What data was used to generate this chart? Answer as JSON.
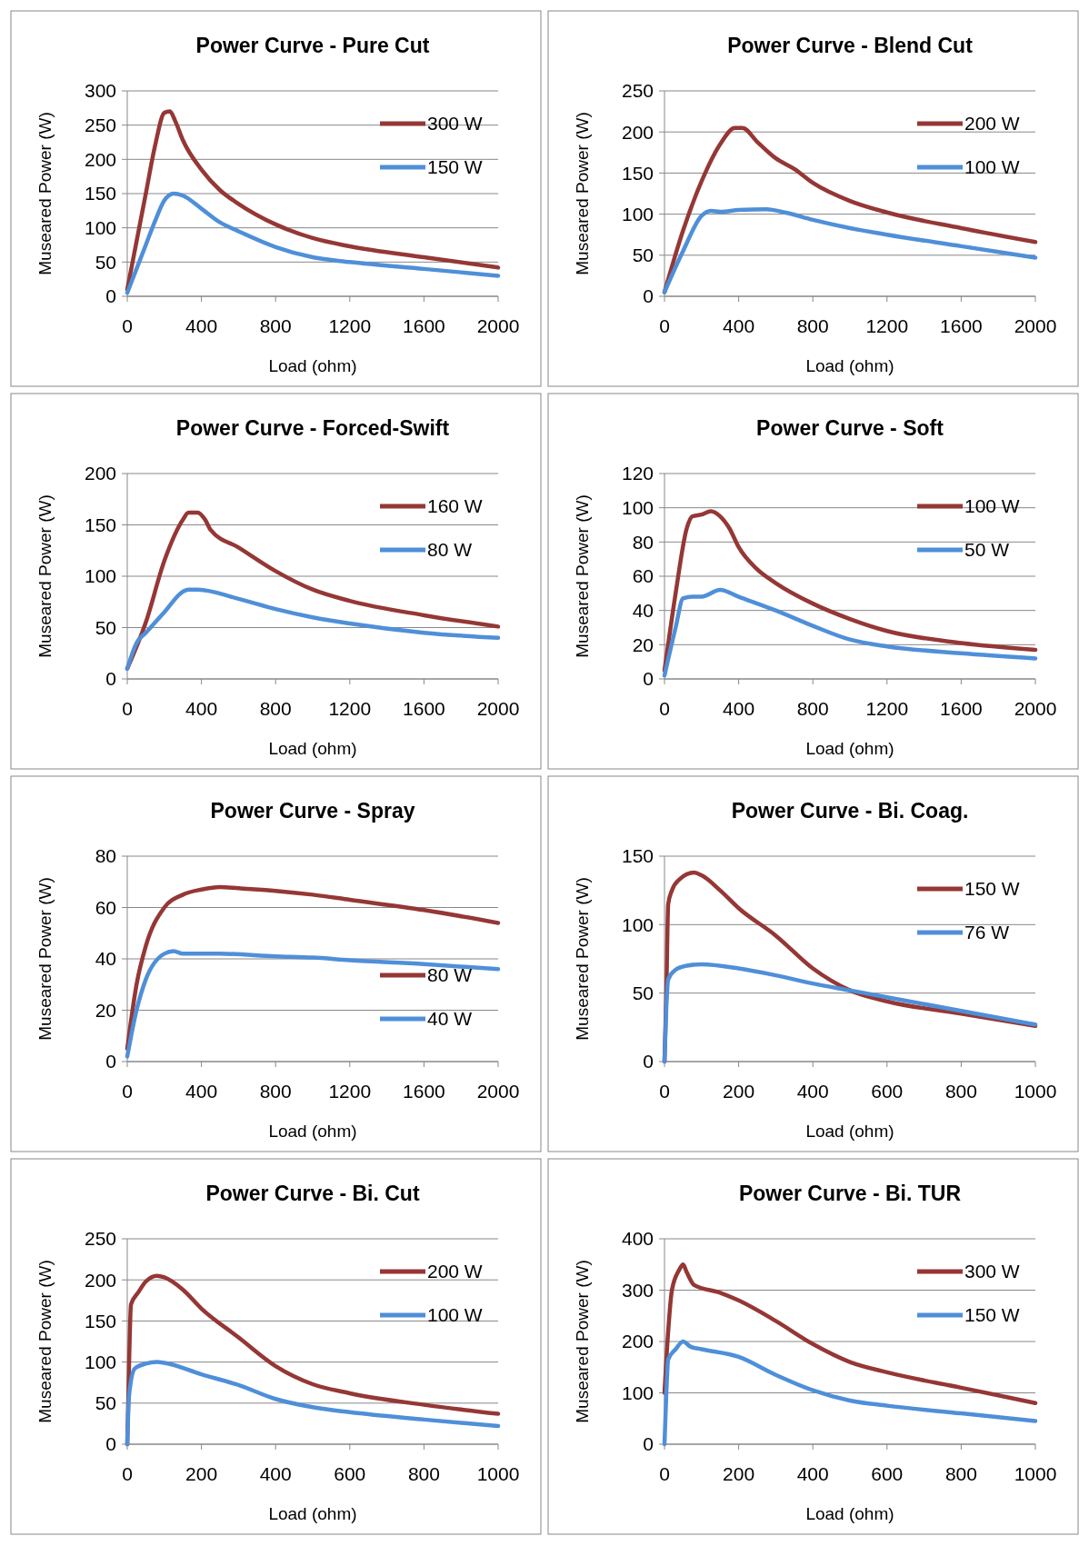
{
  "chart_data": [
    {
      "type": "line",
      "title": "Power Curve - Pure Cut",
      "xlabel": "Load (ohm)",
      "ylabel": "Museared Power (W)",
      "xlim": [
        0,
        2000
      ],
      "xticks": [
        0,
        400,
        800,
        1200,
        1600,
        2000
      ],
      "ylim": [
        0,
        300
      ],
      "yticks": [
        0,
        50,
        100,
        150,
        200,
        250,
        300
      ],
      "grid": "y",
      "legend": "top right",
      "marker": "none",
      "line_style": "solid",
      "series": [
        {
          "name": "300 W",
          "color": "#953735",
          "x": [
            0,
            50,
            100,
            150,
            200,
            230,
            260,
            300,
            400,
            500,
            600,
            800,
            1000,
            1200,
            1600,
            2000
          ],
          "values": [
            10,
            80,
            150,
            220,
            268,
            270,
            255,
            228,
            185,
            155,
            135,
            105,
            85,
            73,
            57,
            42
          ]
        },
        {
          "name": "150 W",
          "color": "#4f8fd9",
          "x": [
            0,
            50,
            100,
            150,
            200,
            250,
            300,
            400,
            500,
            600,
            800,
            1000,
            1200,
            1600,
            2000
          ],
          "values": [
            5,
            40,
            75,
            110,
            140,
            150,
            147,
            128,
            108,
            95,
            72,
            57,
            50,
            40,
            30
          ]
        }
      ]
    },
    {
      "type": "line",
      "title": "Power Curve - Blend Cut",
      "xlabel": "Load (ohm)",
      "ylabel": "Museared Power (W)",
      "xlim": [
        0,
        2000
      ],
      "xticks": [
        0,
        400,
        800,
        1200,
        1600,
        2000
      ],
      "ylim": [
        0,
        250
      ],
      "yticks": [
        0,
        50,
        100,
        150,
        200,
        250
      ],
      "grid": "y",
      "legend": "top right",
      "marker": "none",
      "line_style": "solid",
      "series": [
        {
          "name": "200 W",
          "color": "#953735",
          "x": [
            0,
            100,
            200,
            300,
            380,
            420,
            500,
            600,
            700,
            800,
            1000,
            1200,
            1600,
            2000
          ],
          "values": [
            5,
            80,
            140,
            185,
            205,
            205,
            188,
            168,
            155,
            138,
            116,
            102,
            83,
            66
          ]
        },
        {
          "name": "100 W",
          "color": "#4f8fd9",
          "x": [
            0,
            100,
            200,
            250,
            300,
            400,
            550,
            650,
            800,
            1000,
            1200,
            1600,
            2000
          ],
          "values": [
            5,
            55,
            98,
            104,
            103,
            105,
            106,
            102,
            93,
            83,
            75,
            61,
            47
          ]
        }
      ]
    },
    {
      "type": "line",
      "title": "Power Curve - Forced-Swift",
      "xlabel": "Load (ohm)",
      "ylabel": "Museared Power (W)",
      "xlim": [
        0,
        2000
      ],
      "xticks": [
        0,
        400,
        800,
        1200,
        1600,
        2000
      ],
      "ylim": [
        0,
        200
      ],
      "yticks": [
        0,
        50,
        100,
        150,
        200
      ],
      "grid": "y",
      "legend": "top right",
      "marker": "none",
      "line_style": "solid",
      "series": [
        {
          "name": "160 W",
          "color": "#953735",
          "x": [
            0,
            100,
            200,
            300,
            330,
            380,
            420,
            450,
            600,
            800,
            1000,
            1200,
            1600,
            2000
          ],
          "values": [
            10,
            55,
            115,
            155,
            162,
            162,
            155,
            145,
            128,
            105,
            87,
            76,
            62,
            51
          ]
        },
        {
          "name": "80 W",
          "color": "#4f8fd9",
          "x": [
            0,
            50,
            100,
            200,
            300,
            330,
            380,
            600,
            800,
            1000,
            1200,
            1600,
            2000
          ],
          "values": [
            10,
            35,
            45,
            65,
            85,
            87,
            87,
            78,
            68,
            60,
            54,
            45,
            40
          ]
        }
      ]
    },
    {
      "type": "line",
      "title": "Power Curve - Soft",
      "xlabel": "Load (ohm)",
      "ylabel": "Museared Power (W)",
      "xlim": [
        0,
        2000
      ],
      "xticks": [
        0,
        400,
        800,
        1200,
        1600,
        2000
      ],
      "ylim": [
        0,
        120
      ],
      "yticks": [
        0,
        20,
        40,
        60,
        80,
        100,
        120
      ],
      "grid": "y",
      "legend": "top right",
      "marker": "none",
      "line_style": "solid",
      "series": [
        {
          "name": "100 W",
          "color": "#953735",
          "x": [
            0,
            60,
            120,
            150,
            200,
            250,
            300,
            350,
            400,
            500,
            600,
            800,
            1000,
            1200,
            1600,
            2000
          ],
          "values": [
            5,
            50,
            88,
            95,
            96,
            98,
            95,
            88,
            77,
            64,
            56,
            44,
            35,
            28,
            21,
            17
          ]
        },
        {
          "name": "50 W",
          "color": "#4f8fd9",
          "x": [
            0,
            60,
            100,
            150,
            200,
            300,
            400,
            600,
            800,
            1000,
            1200,
            1600,
            2000
          ],
          "values": [
            2,
            30,
            47,
            48,
            48,
            52,
            48,
            40,
            31,
            23,
            19,
            15,
            12
          ]
        }
      ]
    },
    {
      "type": "line",
      "title": "Power Curve - Spray",
      "xlabel": "Load (ohm)",
      "ylabel": "Museared Power (W)",
      "xlim": [
        0,
        2000
      ],
      "xticks": [
        0,
        400,
        800,
        1200,
        1600,
        2000
      ],
      "ylim": [
        0,
        80
      ],
      "yticks": [
        0,
        20,
        40,
        60,
        80
      ],
      "grid": "y",
      "legend": "bottom right",
      "marker": "none",
      "line_style": "solid",
      "series": [
        {
          "name": "80 W",
          "color": "#953735",
          "x": [
            0,
            50,
            100,
            200,
            300,
            400,
            500,
            600,
            800,
            1000,
            1200,
            1600,
            2000
          ],
          "values": [
            5,
            30,
            45,
            60,
            65,
            67,
            68,
            67.5,
            66.5,
            65,
            63,
            59,
            54
          ]
        },
        {
          "name": "40 W",
          "color": "#4f8fd9",
          "x": [
            0,
            50,
            100,
            200,
            250,
            300,
            500,
            800,
            1000,
            1200,
            1600,
            2000
          ],
          "values": [
            2,
            20,
            32,
            42,
            43,
            42,
            42,
            41,
            40.5,
            39.5,
            38,
            36
          ]
        }
      ]
    },
    {
      "type": "line",
      "title": "Power Curve - Bi. Coag.",
      "xlabel": "Load (ohm)",
      "ylabel": "Museared Power (W)",
      "xlim": [
        0,
        1000
      ],
      "xticks": [
        0,
        200,
        400,
        600,
        800,
        1000
      ],
      "ylim": [
        0,
        150
      ],
      "yticks": [
        0,
        50,
        100,
        150
      ],
      "grid": "y",
      "legend": "top right",
      "marker": "none",
      "line_style": "solid",
      "series": [
        {
          "name": "150 W",
          "color": "#953735",
          "x": [
            0,
            5,
            10,
            20,
            40,
            80,
            100,
            150,
            200,
            300,
            400,
            500,
            600,
            800,
            1000
          ],
          "values": [
            0,
            50,
            115,
            125,
            133,
            138,
            136,
            125,
            112,
            92,
            68,
            52,
            44,
            35,
            26
          ]
        },
        {
          "name": "76 W",
          "color": "#4f8fd9",
          "x": [
            0,
            5,
            10,
            30,
            60,
            100,
            200,
            300,
            400,
            500,
            600,
            800,
            1000
          ],
          "values": [
            0,
            40,
            60,
            67,
            70,
            71,
            68,
            63,
            57,
            52,
            47,
            37,
            27
          ]
        }
      ]
    },
    {
      "type": "line",
      "title": "Power Curve - Bi. Cut",
      "xlabel": "Load (ohm)",
      "ylabel": "Museared Power (W)",
      "xlim": [
        0,
        1000
      ],
      "xticks": [
        0,
        200,
        400,
        600,
        800,
        1000
      ],
      "ylim": [
        0,
        250
      ],
      "yticks": [
        0,
        50,
        100,
        150,
        200,
        250
      ],
      "grid": "y",
      "legend": "top right",
      "marker": "none",
      "line_style": "solid",
      "series": [
        {
          "name": "200 W",
          "color": "#953735",
          "x": [
            0,
            5,
            10,
            30,
            50,
            80,
            100,
            150,
            200,
            300,
            400,
            500,
            600,
            800,
            1000
          ],
          "values": [
            0,
            100,
            170,
            185,
            198,
            205,
            203,
            188,
            165,
            130,
            95,
            73,
            62,
            48,
            37
          ]
        },
        {
          "name": "100 W",
          "color": "#4f8fd9",
          "x": [
            0,
            5,
            20,
            50,
            80,
            100,
            200,
            300,
            400,
            500,
            600,
            800,
            1000
          ],
          "values": [
            0,
            60,
            92,
            98,
            100,
            99,
            85,
            72,
            55,
            45,
            39,
            30,
            22
          ]
        }
      ]
    },
    {
      "type": "line",
      "title": "Power Curve - Bi.  TUR",
      "xlabel": "Load (ohm)",
      "ylabel": "Museared Power (W)",
      "xlim": [
        0,
        1000
      ],
      "xticks": [
        0,
        200,
        400,
        600,
        800,
        1000
      ],
      "ylim": [
        0,
        400
      ],
      "yticks": [
        0,
        100,
        200,
        300,
        400
      ],
      "grid": "y",
      "legend": "top right",
      "marker": "none",
      "line_style": "solid",
      "series": [
        {
          "name": "300 W",
          "color": "#953735",
          "x": [
            0,
            10,
            20,
            40,
            50,
            60,
            80,
            150,
            200,
            300,
            400,
            500,
            600,
            800,
            1000
          ],
          "values": [
            100,
            220,
            300,
            340,
            350,
            335,
            310,
            295,
            280,
            240,
            195,
            160,
            140,
            110,
            80
          ]
        },
        {
          "name": "150 W",
          "color": "#4f8fd9",
          "x": [
            0,
            5,
            10,
            30,
            50,
            70,
            100,
            200,
            300,
            400,
            500,
            600,
            800,
            1000
          ],
          "values": [
            0,
            100,
            165,
            185,
            200,
            190,
            185,
            170,
            135,
            105,
            85,
            75,
            60,
            45
          ]
        }
      ]
    }
  ]
}
